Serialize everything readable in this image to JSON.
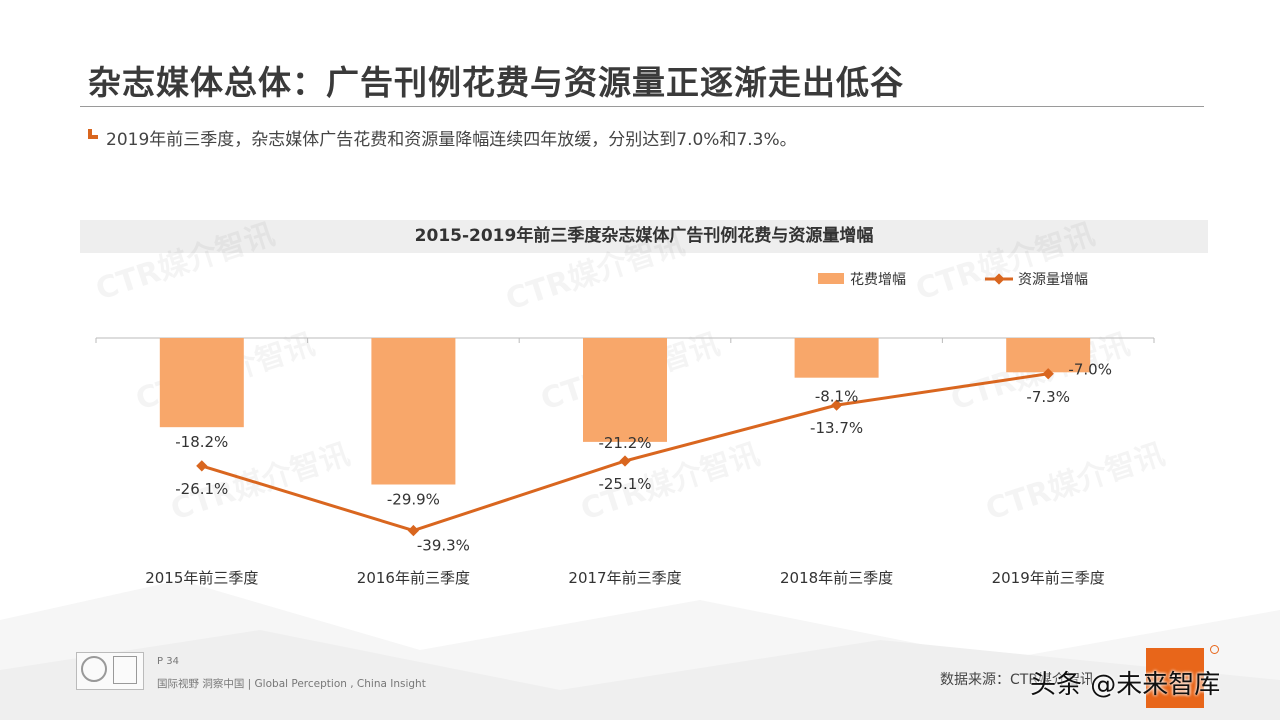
{
  "title": "杂志媒体总体：广告刊例花费与资源量正逐渐走出低谷",
  "subtitle": "2019年前三季度，杂志媒体广告花费和资源量降幅连续四年放缓，分别达到7.0%和7.3%。",
  "watermark": "CTR媒介智讯",
  "footer": {
    "page": "P 34",
    "text": "国际视野  洞察中国 |  Global Perception , China Insight",
    "source": "数据来源：CTR媒介智讯",
    "brand_watermark": "头条 @未来智库"
  },
  "colors": {
    "bar": "#f8a76a",
    "line": "#d9661f",
    "accent": "#e8661a"
  },
  "chart_data": {
    "type": "bar",
    "title": "2015-2019年前三季度杂志媒体广告刊例花费与资源量增幅",
    "categories": [
      "2015年前三季度",
      "2016年前三季度",
      "2017年前三季度",
      "2018年前三季度",
      "2019年前三季度"
    ],
    "series": [
      {
        "name": "花费增幅",
        "type": "bar",
        "values": [
          -18.2,
          -29.9,
          -21.2,
          -8.1,
          -7.0
        ],
        "labels": [
          "-18.2%",
          "-29.9%",
          "-21.2%",
          "-8.1%",
          "-7.0%"
        ]
      },
      {
        "name": "资源量增幅",
        "type": "line",
        "values": [
          -26.1,
          -39.3,
          -25.1,
          -13.7,
          -7.3
        ],
        "labels": [
          "-26.1%",
          "-39.3%",
          "-25.1%",
          "-13.7%",
          "-7.3%"
        ]
      }
    ],
    "ylim": [
      -41,
      0
    ],
    "legend_position": "top-right",
    "grid": false
  }
}
